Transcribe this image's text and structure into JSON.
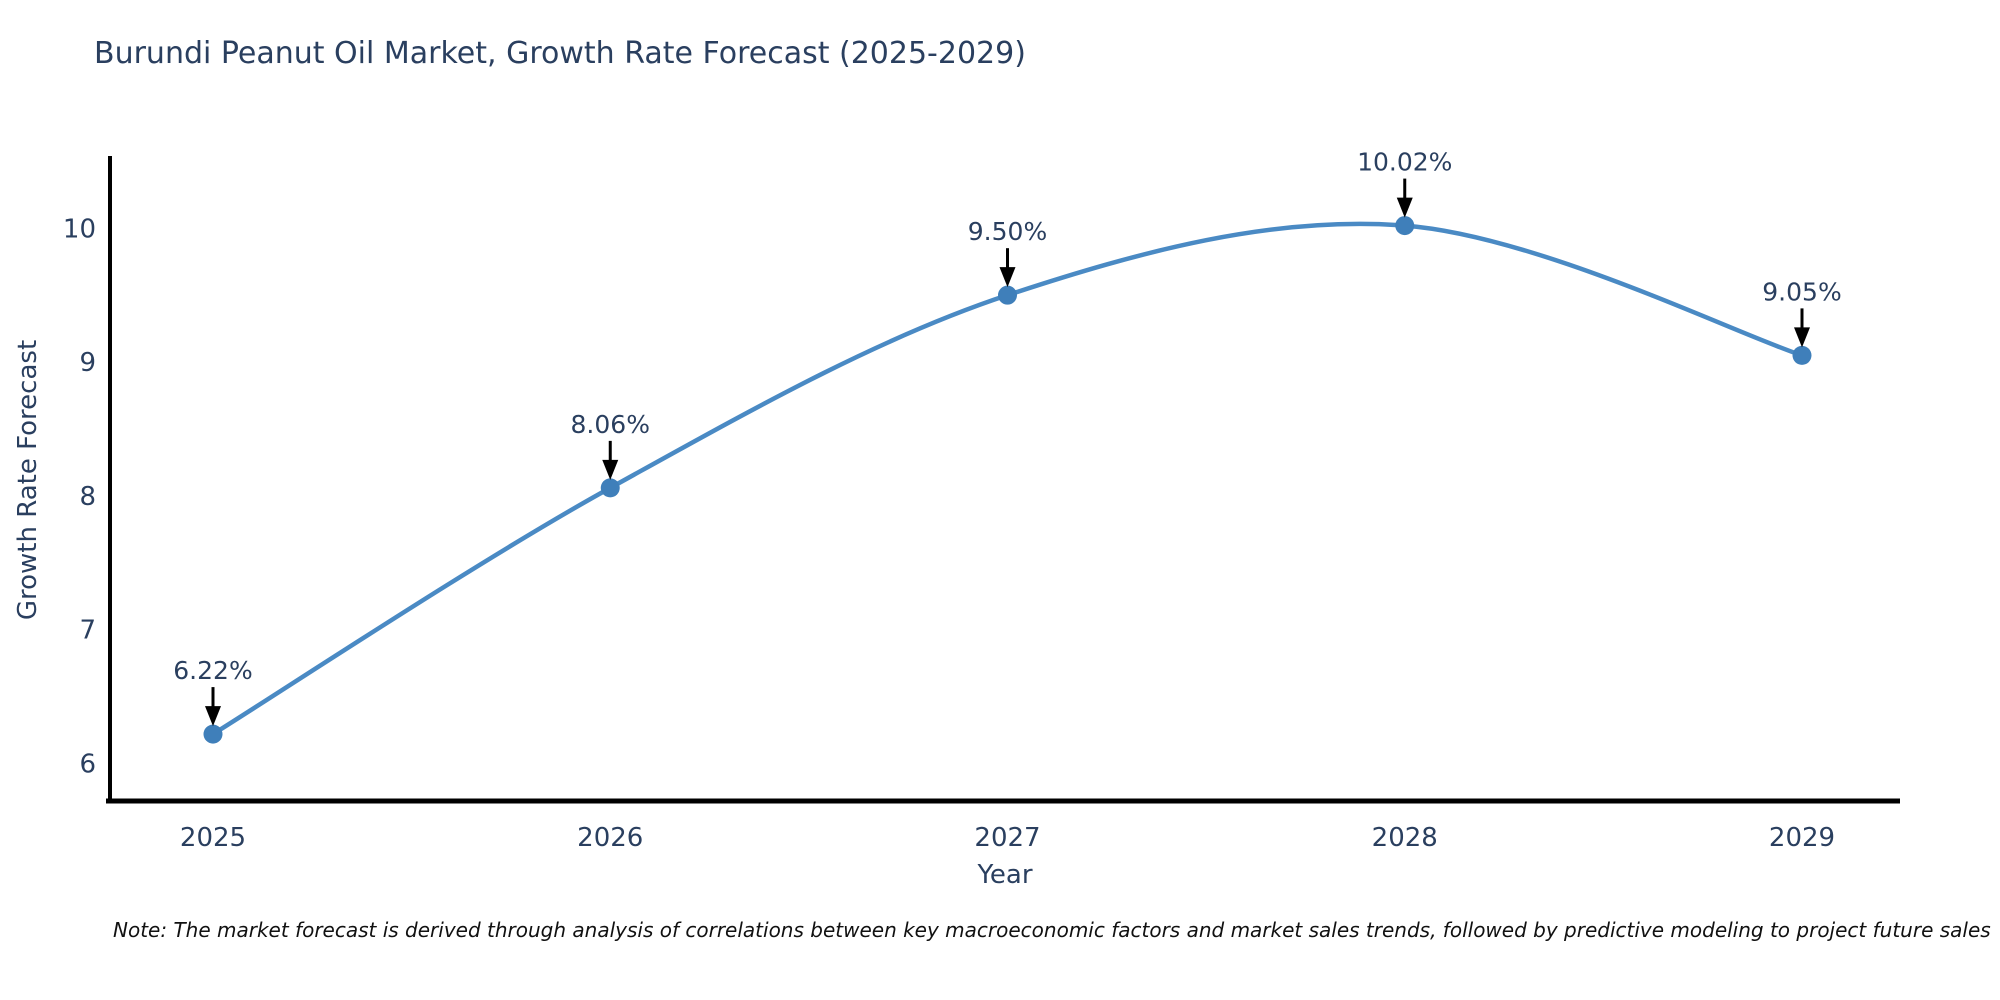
{
  "title": "Burundi Peanut Oil Market, Growth Rate Forecast (2025-2029)",
  "note": "Note: The market forecast is derived through analysis of correlations between key macroeconomic factors and market sales trends, followed by predictive modeling to project future sales",
  "colors": {
    "line": "#4a8ac4",
    "marker": "#3f7fba",
    "axis": "#000000",
    "text": "#2a3f5f",
    "annotation": "#2a3f5f",
    "arrow": "#000000",
    "background": "#ffffff"
  },
  "chart_data": {
    "type": "line",
    "title": "Burundi Peanut Oil Market, Growth Rate Forecast (2025-2029)",
    "xlabel": "Year",
    "ylabel": "Growth Rate Forecast",
    "categories": [
      "2025",
      "2026",
      "2027",
      "2028",
      "2029"
    ],
    "series": [
      {
        "name": "Growth Rate Forecast",
        "values": [
          6.22,
          8.06,
          9.5,
          10.02,
          9.05
        ]
      }
    ],
    "point_labels": [
      "6.22%",
      "8.06%",
      "9.50%",
      "10.02%",
      "9.05%"
    ],
    "yticks": [
      6,
      7,
      8,
      9,
      10
    ],
    "ylim": [
      5.72,
      10.54
    ],
    "grid": false,
    "legend_position": "none",
    "line_shape": "spline",
    "annotation_style": "down-arrow-with-label"
  }
}
